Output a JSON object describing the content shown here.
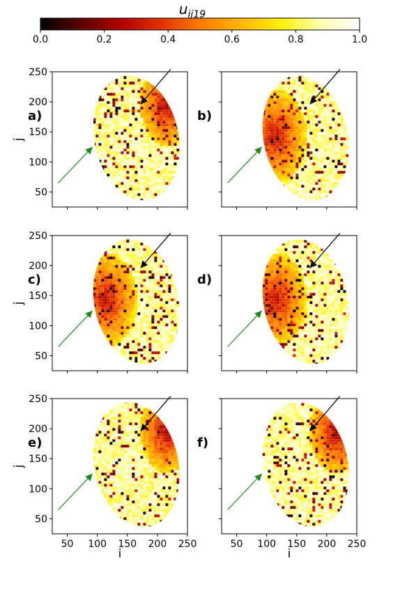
{
  "colorbar": {
    "label": "u",
    "label_sub": "ij19",
    "ticks": [
      "0.0",
      "0.2",
      "0.4",
      "0.6",
      "0.8",
      "1.0"
    ],
    "range": [
      0.0,
      1.0
    ],
    "colormap": [
      "#000000",
      "#5a0000",
      "#b00000",
      "#e03000",
      "#ff7a00",
      "#ffb400",
      "#fff000",
      "#ffffb0",
      "#ffffff"
    ]
  },
  "axes": {
    "xlabel": "i",
    "ylabel": "j",
    "xlim": [
      25,
      250
    ],
    "ylim": [
      25,
      250
    ],
    "xticks": [
      "50",
      "100",
      "150",
      "200",
      "250"
    ],
    "yticks": [
      "50",
      "100",
      "150",
      "200",
      "250"
    ]
  },
  "arrow_colors": {
    "black": "#000000",
    "green": "#1a8a1a"
  },
  "chart_data": [
    {
      "type": "heatmap",
      "panel_label": "a)",
      "dominant": "yellow",
      "dark_region": "top-right"
    },
    {
      "type": "heatmap",
      "panel_label": "b)",
      "dominant": "yellow",
      "dark_region": "left"
    },
    {
      "type": "heatmap",
      "panel_label": "c)",
      "dominant": "yellow",
      "dark_region": "left"
    },
    {
      "type": "heatmap",
      "panel_label": "d)",
      "dominant": "yellow",
      "dark_region": "left"
    },
    {
      "type": "heatmap",
      "panel_label": "e)",
      "dominant": "yellow",
      "dark_region": "top-right"
    },
    {
      "type": "heatmap",
      "panel_label": "f)",
      "dominant": "yellow",
      "dark_region": "top-right"
    }
  ]
}
